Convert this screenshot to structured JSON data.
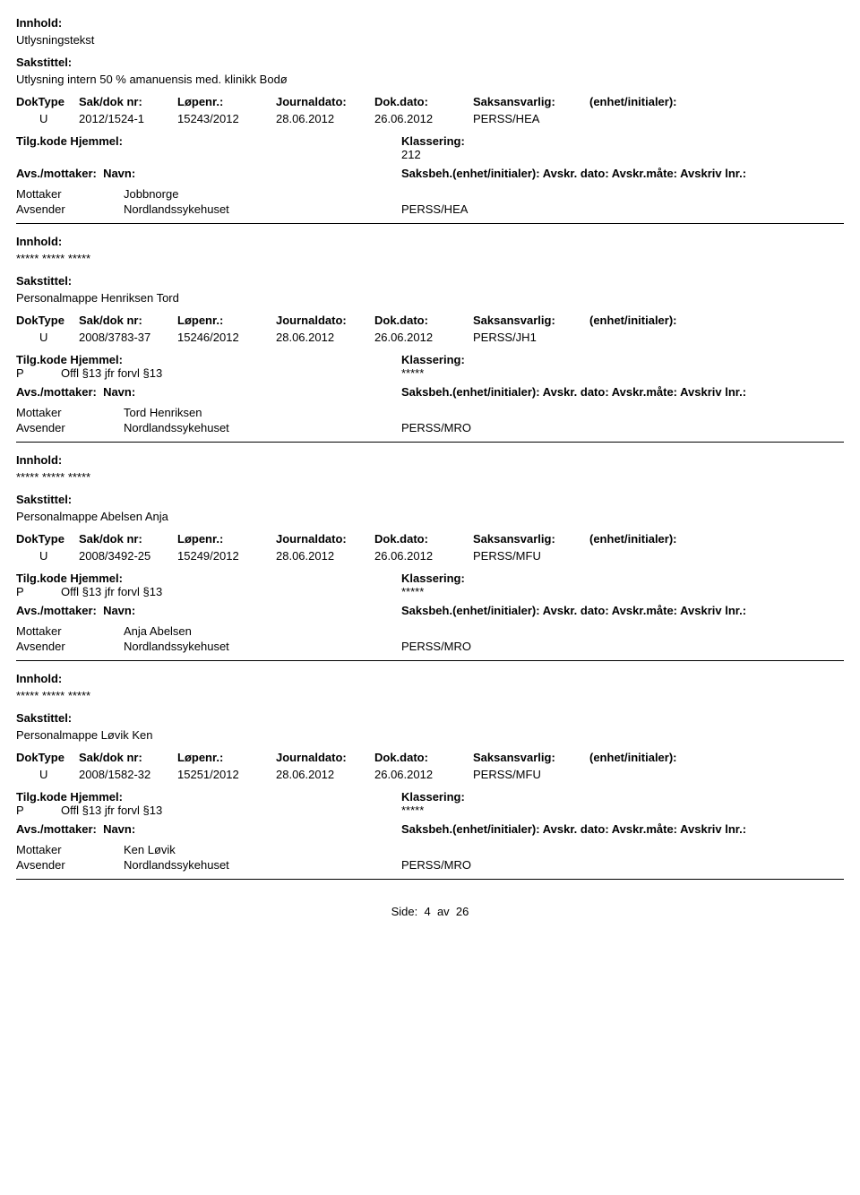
{
  "labels": {
    "innhold": "Innhold:",
    "sakstittel": "Sakstittel:",
    "doktype": "DokType",
    "saknr": "Sak/dok nr:",
    "lopenr": "Løpenr.:",
    "journaldato": "Journaldato:",
    "dokdato": "Dok.dato:",
    "saksansvarlig": "Saksansvarlig:",
    "enhet": "(enhet/initialer):",
    "tilgkode": "Tilg.kode",
    "hjemmel": "Hjemmel:",
    "klassering": "Klassering:",
    "avs_mottaker": "Avs./mottaker:",
    "navn": "Navn:",
    "saksbeh_full": "Saksbeh.(enhet/initialer): Avskr. dato: Avskr.måte: Avskriv lnr.:",
    "mottaker": "Mottaker",
    "avsender": "Avsender",
    "side": "Side:",
    "av": "av"
  },
  "page": {
    "current": "4",
    "total": "26"
  },
  "records": [
    {
      "innhold": "Utlysningstekst",
      "sakstittel": "Utlysning intern 50 % amanuensis med. klinikk Bodø",
      "doktype": "U",
      "saknr": "2012/1524-1",
      "lopenr": "15243/2012",
      "journaldato": "28.06.2012",
      "dokdato": "26.06.2012",
      "saksansvarlig": "PERSS/HEA",
      "tilgkode": "",
      "hjemmel": "",
      "klassering": "212",
      "parties": [
        {
          "role": "Mottaker",
          "name": "Jobbnorge",
          "unit": ""
        },
        {
          "role": "Avsender",
          "name": "Nordlandssykehuset",
          "unit": "PERSS/HEA"
        }
      ]
    },
    {
      "innhold": "***** ***** *****",
      "sakstittel": "Personalmappe Henriksen Tord",
      "doktype": "U",
      "saknr": "2008/3783-37",
      "lopenr": "15246/2012",
      "journaldato": "28.06.2012",
      "dokdato": "26.06.2012",
      "saksansvarlig": "PERSS/JH1",
      "tilgkode": "P",
      "hjemmel": "Offl §13 jfr forvl §13",
      "klassering": "*****",
      "parties": [
        {
          "role": "Mottaker",
          "name": "Tord Henriksen",
          "unit": ""
        },
        {
          "role": "Avsender",
          "name": "Nordlandssykehuset",
          "unit": "PERSS/MRO"
        }
      ]
    },
    {
      "innhold": "***** ***** *****",
      "sakstittel": "Personalmappe Abelsen Anja",
      "doktype": "U",
      "saknr": "2008/3492-25",
      "lopenr": "15249/2012",
      "journaldato": "28.06.2012",
      "dokdato": "26.06.2012",
      "saksansvarlig": "PERSS/MFU",
      "tilgkode": "P",
      "hjemmel": "Offl §13 jfr forvl §13",
      "klassering": "*****",
      "parties": [
        {
          "role": "Mottaker",
          "name": "Anja Abelsen",
          "unit": ""
        },
        {
          "role": "Avsender",
          "name": "Nordlandssykehuset",
          "unit": "PERSS/MRO"
        }
      ]
    },
    {
      "innhold": "***** ***** *****",
      "sakstittel": "Personalmappe Løvik Ken",
      "doktype": "U",
      "saknr": "2008/1582-32",
      "lopenr": "15251/2012",
      "journaldato": "28.06.2012",
      "dokdato": "26.06.2012",
      "saksansvarlig": "PERSS/MFU",
      "tilgkode": "P",
      "hjemmel": "Offl §13 jfr forvl §13",
      "klassering": "*****",
      "parties": [
        {
          "role": "Mottaker",
          "name": "Ken Løvik",
          "unit": ""
        },
        {
          "role": "Avsender",
          "name": "Nordlandssykehuset",
          "unit": "PERSS/MRO"
        }
      ]
    }
  ]
}
